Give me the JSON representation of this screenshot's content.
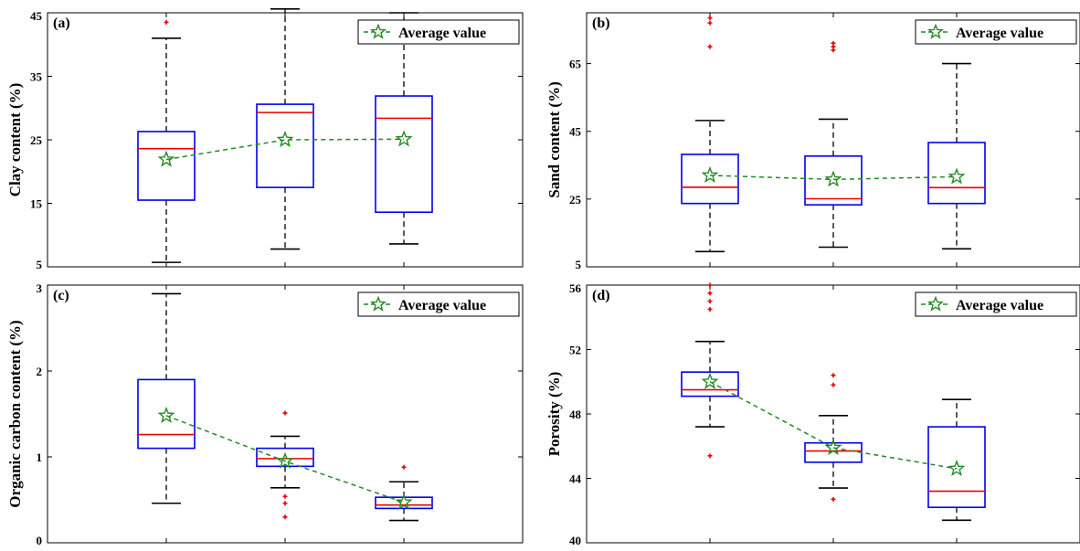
{
  "legend_label": "Average value",
  "colors": {
    "box": "#0000ee",
    "median": "#ee0000",
    "outlier": "#ee0000",
    "whisker": "#000000",
    "mean": "#228b22"
  },
  "chart_data": [
    {
      "type": "box",
      "panel_label": "(a)",
      "ylabel": "Clay content (%)",
      "ylim": [
        5,
        45
      ],
      "yticks": [
        5,
        15,
        25,
        35,
        45
      ],
      "legend_position": "top-right",
      "grid": false,
      "mean_label": "Average value",
      "boxes": [
        {
          "whisker_low": 5.7,
          "q1": 15.5,
          "median": 23.6,
          "q3": 26.3,
          "whisker_high": 41.0,
          "mean": 21.9,
          "outliers": [
            43.5
          ]
        },
        {
          "whisker_low": 7.8,
          "q1": 17.5,
          "median": 29.3,
          "q3": 30.6,
          "whisker_high": 45.6,
          "mean": 25.0,
          "outliers": []
        },
        {
          "whisker_low": 8.6,
          "q1": 13.6,
          "median": 28.4,
          "q3": 31.9,
          "whisker_high": 45.0,
          "mean": 25.1,
          "outliers": []
        }
      ]
    },
    {
      "type": "box",
      "panel_label": "(b)",
      "ylabel": "Sand content (%)",
      "ylim": [
        5,
        80
      ],
      "yticks": [
        5,
        25,
        45,
        65
      ],
      "legend_position": "top-right",
      "grid": false,
      "mean_label": "Average value",
      "boxes": [
        {
          "whisker_low": 9.5,
          "q1": 23.7,
          "median": 28.5,
          "q3": 38.2,
          "whisker_high": 48.2,
          "mean": 32.0,
          "outliers": [
            70,
            77,
            78.5
          ]
        },
        {
          "whisker_low": 10.8,
          "q1": 23.3,
          "median": 25.1,
          "q3": 37.7,
          "whisker_high": 48.6,
          "mean": 30.8,
          "outliers": [
            69,
            70,
            71
          ]
        },
        {
          "whisker_low": 10.3,
          "q1": 23.7,
          "median": 28.4,
          "q3": 41.7,
          "whisker_high": 65.0,
          "mean": 31.6,
          "outliers": []
        }
      ]
    },
    {
      "type": "box",
      "panel_label": "(c)",
      "ylabel": "Organic carbon content (%)",
      "ylim": [
        0,
        3
      ],
      "yticks": [
        0,
        1,
        2,
        3
      ],
      "legend_position": "top-right",
      "grid": false,
      "mean_label": "Average value",
      "boxes": [
        {
          "whisker_low": 0.46,
          "q1": 1.1,
          "median": 1.26,
          "q3": 1.9,
          "whisker_high": 2.9,
          "mean": 1.48,
          "outliers": []
        },
        {
          "whisker_low": 0.64,
          "q1": 0.89,
          "median": 0.98,
          "q3": 1.1,
          "whisker_high": 1.24,
          "mean": 0.95,
          "outliers": [
            1.51,
            0.54,
            0.46,
            0.3
          ]
        },
        {
          "whisker_low": 0.26,
          "q1": 0.4,
          "median": 0.44,
          "q3": 0.53,
          "whisker_high": 0.71,
          "mean": 0.47,
          "outliers": [
            0.88
          ]
        }
      ]
    },
    {
      "type": "box",
      "panel_label": "(d)",
      "ylabel": "Porosity (%)",
      "ylim": [
        40,
        56
      ],
      "yticks": [
        40,
        44,
        48,
        52,
        56
      ],
      "legend_position": "top-right",
      "grid": false,
      "mean_label": "Average value",
      "boxes": [
        {
          "whisker_low": 47.2,
          "q1": 49.1,
          "median": 49.5,
          "q3": 50.6,
          "whisker_high": 52.5,
          "mean": 50.0,
          "outliers": [
            56.0,
            55.5,
            55.0,
            54.5,
            45.4
          ]
        },
        {
          "whisker_low": 43.4,
          "q1": 45.0,
          "median": 45.7,
          "q3": 46.2,
          "whisker_high": 47.9,
          "mean": 45.9,
          "outliers": [
            50.4,
            49.8,
            42.7
          ]
        },
        {
          "whisker_low": 41.4,
          "q1": 42.2,
          "median": 43.2,
          "q3": 47.2,
          "whisker_high": 48.9,
          "mean": 44.6,
          "outliers": []
        }
      ]
    }
  ]
}
